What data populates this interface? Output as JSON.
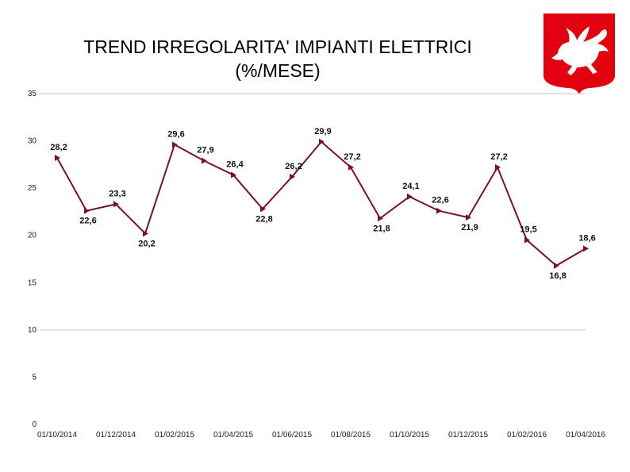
{
  "title_line1": "TREND IRREGOLARITA' IMPIANTI ELETTRICI",
  "title_line2": "(%/MESE)",
  "logo": {
    "icon": "pegasus-icon",
    "background_color": "#e3000f",
    "figure_color": "#ffffff"
  },
  "chart_data": {
    "type": "line",
    "title": "TREND IRREGOLARITA' IMPIANTI ELETTRICI (%/MESE)",
    "xlabel": "",
    "ylabel": "",
    "ylim": [
      0,
      35
    ],
    "yticks": [
      0,
      5,
      10,
      15,
      20,
      25,
      30,
      35
    ],
    "ytick_labels": [
      "0",
      "5",
      "10",
      "15",
      "20",
      "25",
      "30",
      "35"
    ],
    "xtick_labels": [
      "01/10/2014",
      "01/12/2014",
      "01/02/2015",
      "01/04/2015",
      "01/06/2015",
      "01/08/2015",
      "01/10/2015",
      "01/12/2015",
      "01/02/2016",
      "01/04/2016"
    ],
    "grid": {
      "horizontal_lines_at": [
        10,
        35
      ]
    },
    "line_color": "#7a1030",
    "series": [
      {
        "name": "",
        "x": [
          "2014-10",
          "2014-11",
          "2014-12",
          "2015-01",
          "2015-02",
          "2015-03",
          "2015-04",
          "2015-05",
          "2015-06",
          "2015-07",
          "2015-08",
          "2015-09",
          "2015-10",
          "2015-11",
          "2015-12",
          "2016-01",
          "2016-02",
          "2016-03",
          "2016-04"
        ],
        "values": [
          28.2,
          22.6,
          23.3,
          20.2,
          29.6,
          27.9,
          26.4,
          22.8,
          26.2,
          29.9,
          27.2,
          21.8,
          24.1,
          22.6,
          21.9,
          27.2,
          19.5,
          16.8,
          18.6
        ],
        "labels": [
          "28,2",
          "22,6",
          "23,3",
          "20,2",
          "29,6",
          "27,9",
          "26,4",
          "22,8",
          "26,2",
          "29,9",
          "27,2",
          "21,8",
          "24,1",
          "22,6",
          "21,9",
          "27,2",
          "19,5",
          "16,8",
          "18,6"
        ]
      }
    ]
  }
}
